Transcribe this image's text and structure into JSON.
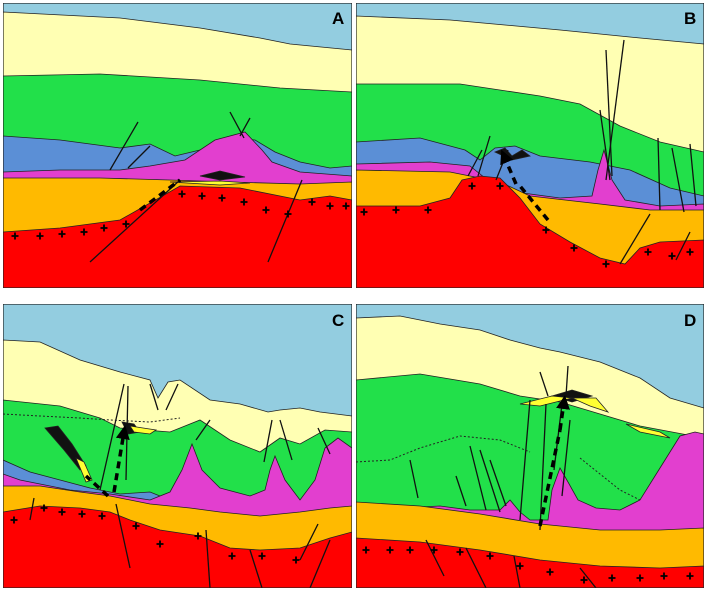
{
  "panels": [
    {
      "id": "A",
      "label": "A"
    },
    {
      "id": "B",
      "label": "B"
    },
    {
      "id": "C",
      "label": "C"
    },
    {
      "id": "D",
      "label": "D"
    }
  ],
  "colors": {
    "sky": "#93cde0",
    "overburden": "#ffffb3",
    "green_layer": "#22e04a",
    "blue_layer": "#5b8fd6",
    "salt": "#e23fcf",
    "orange_layer": "#ffba00",
    "basement": "#ff0000",
    "oil_trap": "#111111",
    "yellow_lens": "#ffff33"
  },
  "icons": [
    "basement-plus-symbol",
    "migration-arrow-icon"
  ]
}
